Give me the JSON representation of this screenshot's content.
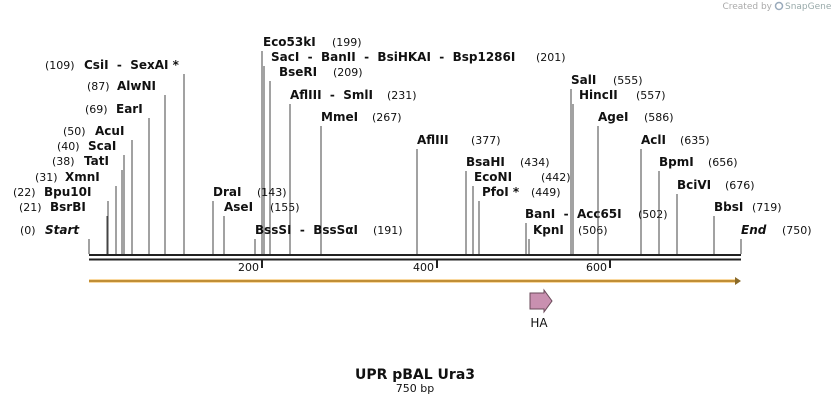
{
  "brand": {
    "prefix": "Created by",
    "name": "SnapGene"
  },
  "map": {
    "title": "UPR pBAL Ura3",
    "subtitle": "750 bp",
    "sites": [
      {
        "name": "Start",
        "position": "(0)"
      },
      {
        "name": "BsrBI",
        "position": "(21)"
      },
      {
        "name": "Bpu10I",
        "position": "(22)"
      },
      {
        "name": "XmnI",
        "position": "(31)"
      },
      {
        "name": "TatI",
        "position": "(38)"
      },
      {
        "name": "ScaI",
        "position": "(40)"
      },
      {
        "name": "AcuI",
        "position": "(50)"
      },
      {
        "name": "EarI",
        "position": "(69)"
      },
      {
        "name": "AlwNI",
        "position": "(87)"
      },
      {
        "name": "CsiI  -  SexAI *",
        "position": "(109)"
      },
      {
        "name": "Eco53kI",
        "position": "(199)"
      },
      {
        "name": "SacI  -  BanII  -  BsiHKAI  -  Bsp1286I",
        "position": "(201)"
      },
      {
        "name": "BseRI",
        "position": "(209)"
      },
      {
        "name": "AflIII  -  SmlI",
        "position": "(231)"
      },
      {
        "name": "MmeI",
        "position": "(267)"
      },
      {
        "name": "AflIII",
        "position": "(377)"
      },
      {
        "name": "BsaHI",
        "position": "(434)"
      },
      {
        "name": "EcoNI",
        "position": "(442)"
      },
      {
        "name": "PfoI *",
        "position": "(449)"
      },
      {
        "name": "DraI",
        "position": "(143)"
      },
      {
        "name": "AseI",
        "position": "(155)"
      },
      {
        "name": "BssSI  -  BssSαI",
        "position": "(191)"
      },
      {
        "name": "BanI  -  Acc65I",
        "position": "(502)"
      },
      {
        "name": "KpnI",
        "position": "(506)"
      },
      {
        "name": "SalI",
        "position": "(555)"
      },
      {
        "name": "HincII",
        "position": "(557)"
      },
      {
        "name": "AgeI",
        "position": "(586)"
      },
      {
        "name": "AclI",
        "position": "(635)"
      },
      {
        "name": "BpmI",
        "position": "(656)"
      },
      {
        "name": "BciVI",
        "position": "(676)"
      },
      {
        "name": "BbsI",
        "position": "(719)"
      },
      {
        "name": "End",
        "position": "(750)"
      }
    ],
    "ruler": [
      "200",
      "400",
      "600"
    ],
    "features": [
      {
        "label": "HA"
      }
    ]
  }
}
